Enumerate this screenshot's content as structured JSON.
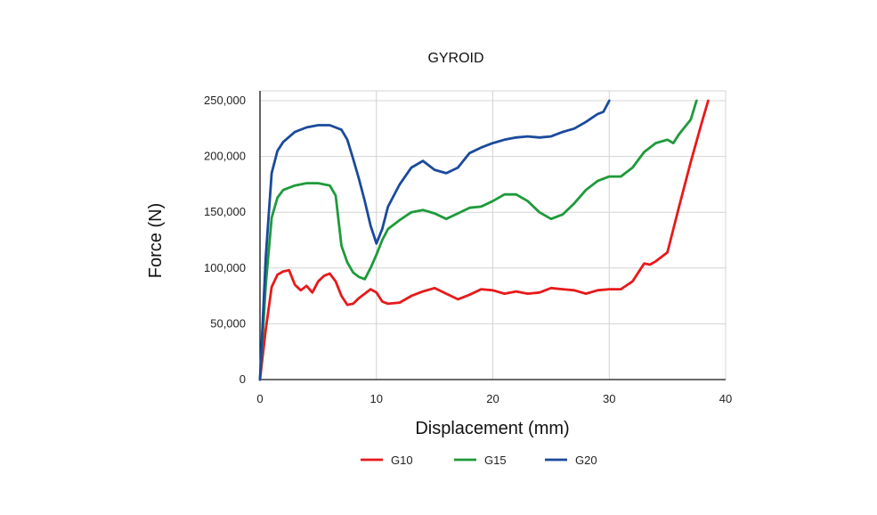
{
  "chart_data": {
    "type": "line",
    "title": "GYROID",
    "xlabel": "Displacement (mm)",
    "ylabel": "Force (N)",
    "xlim": [
      0,
      40
    ],
    "ylim": [
      0,
      250000
    ],
    "grid": true,
    "legend_position": "bottom",
    "x_ticks": [
      0,
      10,
      20,
      30,
      40
    ],
    "x_tick_labels": [
      "0",
      "10",
      "20",
      "30",
      "40"
    ],
    "y_ticks": [
      0,
      50000,
      100000,
      150000,
      200000,
      250000
    ],
    "y_tick_labels": [
      "0",
      "50,000",
      "100,000",
      "150,000",
      "200,000",
      "250,000"
    ],
    "series": [
      {
        "name": "G10",
        "color": "#e8191a",
        "points": [
          [
            0,
            0
          ],
          [
            0.5,
            45000
          ],
          [
            1,
            83000
          ],
          [
            1.5,
            94000
          ],
          [
            2,
            97000
          ],
          [
            2.5,
            98000
          ],
          [
            3,
            85000
          ],
          [
            3.5,
            80000
          ],
          [
            4,
            84000
          ],
          [
            4.5,
            78000
          ],
          [
            5,
            88000
          ],
          [
            5.5,
            93000
          ],
          [
            6,
            95000
          ],
          [
            6.5,
            88000
          ],
          [
            7,
            75000
          ],
          [
            7.5,
            67000
          ],
          [
            8,
            68000
          ],
          [
            8.5,
            73000
          ],
          [
            9,
            77000
          ],
          [
            9.5,
            81000
          ],
          [
            10,
            78000
          ],
          [
            10.5,
            70000
          ],
          [
            11,
            68000
          ],
          [
            12,
            69000
          ],
          [
            13,
            75000
          ],
          [
            14,
            79000
          ],
          [
            15,
            82000
          ],
          [
            16,
            77000
          ],
          [
            17,
            72000
          ],
          [
            18,
            76000
          ],
          [
            19,
            81000
          ],
          [
            20,
            80000
          ],
          [
            21,
            77000
          ],
          [
            22,
            79000
          ],
          [
            23,
            77000
          ],
          [
            24,
            78000
          ],
          [
            25,
            82000
          ],
          [
            26,
            81000
          ],
          [
            27,
            80000
          ],
          [
            28,
            77000
          ],
          [
            29,
            80000
          ],
          [
            30,
            81000
          ],
          [
            31,
            81000
          ],
          [
            32,
            88000
          ],
          [
            33,
            104000
          ],
          [
            33.5,
            103000
          ],
          [
            34,
            106000
          ],
          [
            35,
            114000
          ],
          [
            36,
            155000
          ],
          [
            37,
            195000
          ],
          [
            38,
            232000
          ],
          [
            38.5,
            250000
          ]
        ]
      },
      {
        "name": "G15",
        "color": "#1e9a3a",
        "points": [
          [
            0,
            0
          ],
          [
            0.5,
            85000
          ],
          [
            1,
            145000
          ],
          [
            1.5,
            163000
          ],
          [
            2,
            170000
          ],
          [
            3,
            174000
          ],
          [
            4,
            176000
          ],
          [
            5,
            176000
          ],
          [
            6,
            174000
          ],
          [
            6.5,
            165000
          ],
          [
            7,
            120000
          ],
          [
            7.5,
            105000
          ],
          [
            8,
            96000
          ],
          [
            8.5,
            92000
          ],
          [
            9,
            90000
          ],
          [
            9.5,
            100000
          ],
          [
            10,
            112000
          ],
          [
            10.5,
            125000
          ],
          [
            11,
            135000
          ],
          [
            12,
            143000
          ],
          [
            13,
            150000
          ],
          [
            14,
            152000
          ],
          [
            15,
            149000
          ],
          [
            16,
            144000
          ],
          [
            17,
            149000
          ],
          [
            18,
            154000
          ],
          [
            19,
            155000
          ],
          [
            20,
            160000
          ],
          [
            21,
            166000
          ],
          [
            22,
            166000
          ],
          [
            23,
            160000
          ],
          [
            24,
            150000
          ],
          [
            25,
            144000
          ],
          [
            26,
            148000
          ],
          [
            27,
            158000
          ],
          [
            28,
            170000
          ],
          [
            29,
            178000
          ],
          [
            30,
            182000
          ],
          [
            31,
            182000
          ],
          [
            32,
            190000
          ],
          [
            33,
            204000
          ],
          [
            34,
            212000
          ],
          [
            35,
            215000
          ],
          [
            35.5,
            212000
          ],
          [
            36,
            220000
          ],
          [
            37,
            233000
          ],
          [
            37.5,
            250000
          ]
        ]
      },
      {
        "name": "G20",
        "color": "#1a4a9c",
        "points": [
          [
            0,
            0
          ],
          [
            0.5,
            110000
          ],
          [
            1,
            185000
          ],
          [
            1.5,
            205000
          ],
          [
            2,
            213000
          ],
          [
            3,
            222000
          ],
          [
            4,
            226000
          ],
          [
            5,
            228000
          ],
          [
            6,
            228000
          ],
          [
            7,
            224000
          ],
          [
            7.5,
            215000
          ],
          [
            8,
            198000
          ],
          [
            8.5,
            180000
          ],
          [
            9,
            160000
          ],
          [
            9.5,
            138000
          ],
          [
            10,
            122000
          ],
          [
            10.5,
            135000
          ],
          [
            11,
            155000
          ],
          [
            12,
            175000
          ],
          [
            13,
            190000
          ],
          [
            14,
            196000
          ],
          [
            15,
            188000
          ],
          [
            16,
            185000
          ],
          [
            17,
            190000
          ],
          [
            18,
            203000
          ],
          [
            19,
            208000
          ],
          [
            20,
            212000
          ],
          [
            21,
            215000
          ],
          [
            22,
            217000
          ],
          [
            23,
            218000
          ],
          [
            24,
            217000
          ],
          [
            25,
            218000
          ],
          [
            26,
            222000
          ],
          [
            27,
            225000
          ],
          [
            28,
            231000
          ],
          [
            29,
            238000
          ],
          [
            29.5,
            240000
          ],
          [
            30,
            250000
          ]
        ]
      }
    ]
  }
}
